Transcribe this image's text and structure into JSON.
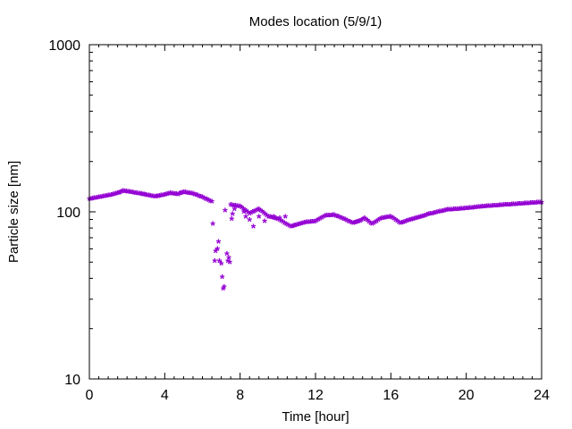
{
  "chart_data": {
    "type": "scatter",
    "title": "Modes location (5/9/1)",
    "xlabel": "Time [hour]",
    "ylabel": "Particle size [nm]",
    "xlim": [
      0,
      24
    ],
    "ylim": [
      10,
      1000
    ],
    "yscale": "log",
    "x_ticks": [
      {
        "value": 0,
        "label": "0"
      },
      {
        "value": 4,
        "label": "4"
      },
      {
        "value": 8,
        "label": "8"
      },
      {
        "value": 12,
        "label": "12"
      },
      {
        "value": 16,
        "label": "16"
      },
      {
        "value": 20,
        "label": "20"
      },
      {
        "value": 24,
        "label": "24"
      }
    ],
    "y_ticks": [
      {
        "value": 10,
        "label": "10"
      },
      {
        "value": 100,
        "label": "100"
      },
      {
        "value": 1000,
        "label": "1000"
      }
    ],
    "grid": false,
    "marker_color": "#9400d3",
    "marker": "star",
    "curve": [
      [
        0.0,
        117
      ],
      [
        0.5,
        120
      ],
      [
        1.0,
        123
      ],
      [
        1.5,
        127
      ],
      [
        1.8,
        131
      ],
      [
        2.2,
        129
      ],
      [
        2.7,
        126
      ],
      [
        3.0,
        124
      ],
      [
        3.5,
        121
      ],
      [
        3.8,
        123
      ],
      [
        4.3,
        127
      ],
      [
        4.7,
        125
      ],
      [
        5.0,
        129
      ],
      [
        5.5,
        126
      ],
      [
        6.0,
        120
      ],
      [
        6.5,
        113
      ],
      [
        7.5,
        108
      ],
      [
        8.0,
        106
      ],
      [
        8.5,
        96
      ],
      [
        9.0,
        102
      ],
      [
        9.5,
        92
      ],
      [
        10.0,
        89
      ],
      [
        10.7,
        80
      ],
      [
        11.0,
        82
      ],
      [
        11.5,
        85
      ],
      [
        12.0,
        86
      ],
      [
        12.5,
        93
      ],
      [
        13.0,
        94
      ],
      [
        13.5,
        89
      ],
      [
        14.0,
        84
      ],
      [
        14.3,
        86
      ],
      [
        14.6,
        90
      ],
      [
        15.0,
        83
      ],
      [
        15.5,
        90
      ],
      [
        16.0,
        92
      ],
      [
        16.5,
        84
      ],
      [
        17.0,
        88
      ],
      [
        17.5,
        91
      ],
      [
        18.0,
        95
      ],
      [
        18.5,
        98
      ],
      [
        19.0,
        101
      ],
      [
        20.0,
        103
      ],
      [
        21.0,
        106
      ],
      [
        22.0,
        108
      ],
      [
        23.0,
        110
      ],
      [
        24.0,
        112
      ]
    ],
    "scatter_points": [
      [
        6.55,
        83
      ],
      [
        6.65,
        50
      ],
      [
        6.7,
        57
      ],
      [
        6.8,
        59
      ],
      [
        6.85,
        65
      ],
      [
        6.9,
        50
      ],
      [
        7.0,
        48
      ],
      [
        7.05,
        40
      ],
      [
        7.1,
        34
      ],
      [
        7.15,
        35
      ],
      [
        7.2,
        100
      ],
      [
        7.3,
        55
      ],
      [
        7.35,
        50
      ],
      [
        7.4,
        52
      ],
      [
        7.45,
        49
      ],
      [
        7.55,
        89
      ],
      [
        7.6,
        95
      ],
      [
        7.7,
        102
      ],
      [
        8.2,
        98
      ],
      [
        8.3,
        92
      ],
      [
        8.5,
        88
      ],
      [
        8.7,
        80
      ],
      [
        9.0,
        92
      ],
      [
        9.3,
        86
      ],
      [
        9.8,
        92
      ],
      [
        10.1,
        90
      ],
      [
        10.4,
        92
      ]
    ]
  }
}
